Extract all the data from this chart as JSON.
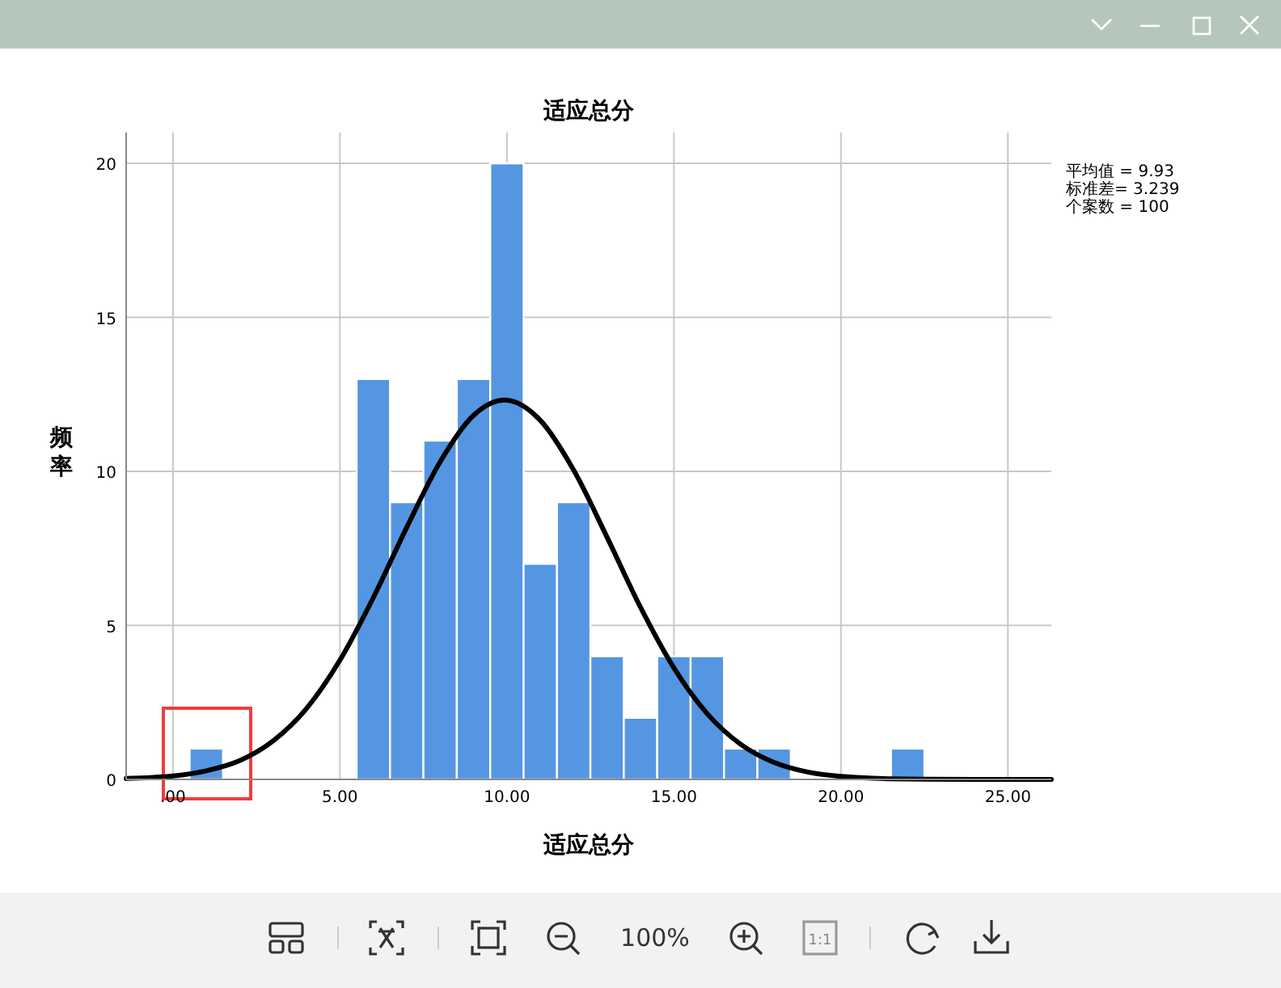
{
  "chart_data": {
    "type": "histogram",
    "title": "适应总分",
    "xlabel": "适应总分",
    "ylabel": "频率",
    "bins": [
      0.5,
      1.5,
      2.5,
      3.5,
      4.5,
      5.5,
      6.5,
      7.5,
      8.5,
      9.5,
      10.5,
      11.5,
      12.5,
      13.5,
      14.5,
      15.5,
      16.5,
      17.5,
      18.5,
      19.5,
      20.5,
      21.5,
      22.5
    ],
    "values": [
      1,
      0,
      0,
      0,
      0,
      13,
      9,
      11,
      13,
      20,
      7,
      9,
      4,
      2,
      4,
      4,
      1,
      1,
      0,
      0,
      0,
      1
    ],
    "color": "#5596e3",
    "series": [
      {
        "type": "line",
        "color": "#000000",
        "x": [
          -1.4,
          0,
          1,
          2,
          3,
          4,
          5,
          6,
          7,
          8,
          9,
          9.93,
          11,
          12,
          13,
          14,
          15,
          16,
          17,
          18,
          19,
          20,
          22,
          24,
          26.3
        ],
        "values": [
          0.03,
          0.11,
          0.28,
          0.61,
          1.25,
          2.3,
          3.87,
          5.9,
          8.18,
          10.31,
          11.82,
          12.32,
          11.66,
          10.04,
          7.86,
          5.59,
          3.62,
          2.13,
          1.14,
          0.55,
          0.24,
          0.1,
          0.01,
          0,
          0
        ]
      }
    ],
    "xlim": [
      -1.4,
      26.3
    ],
    "ylim": [
      0,
      21
    ],
    "xticks": [
      {
        "value": 0,
        "label": ".00"
      },
      {
        "value": 5,
        "label": "5.00"
      },
      {
        "value": 10,
        "label": "10.00"
      },
      {
        "value": 15,
        "label": "15.00"
      },
      {
        "value": 20,
        "label": "20.00"
      },
      {
        "value": 25,
        "label": "25.00"
      }
    ],
    "yticks": [
      0,
      5,
      10,
      15,
      20
    ],
    "grid": true,
    "annotations": [
      "平均值 = 9.93",
      "标准差= 3.239",
      "个案数 = 100",
      "100%",
      "1:1"
    ]
  }
}
